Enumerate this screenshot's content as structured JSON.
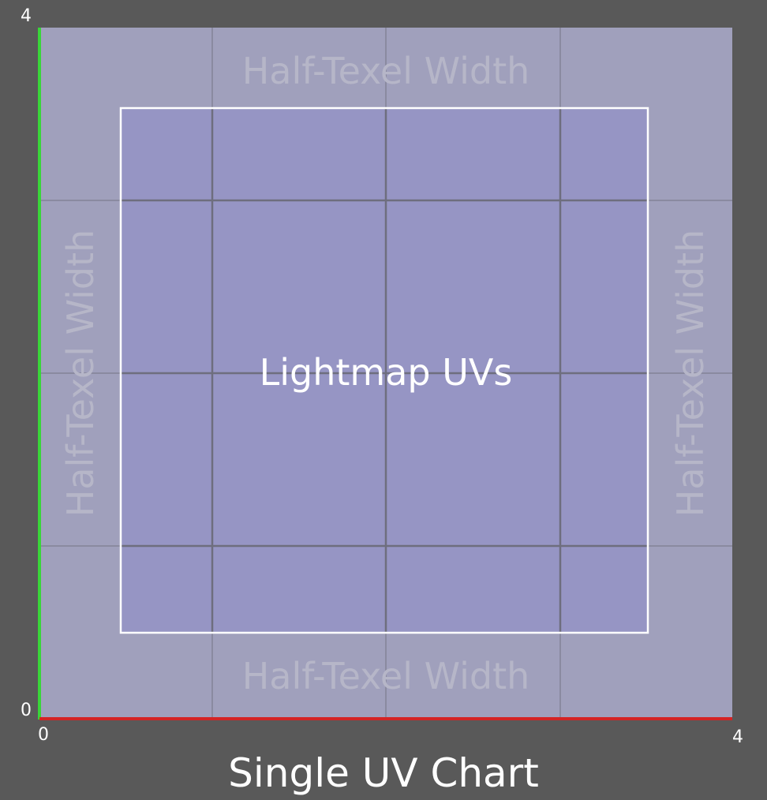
{
  "diagram": {
    "caption": "Single UV Chart",
    "center_label": "Lightmap UVs",
    "margin_label_top": "Half-Texel Width",
    "margin_label_bottom": "Half-Texel Width",
    "margin_label_left": "Half-Texel Width",
    "margin_label_right": "Half-Texel Width",
    "axis": {
      "x_min": "0",
      "x_max": "4",
      "y_min": "0",
      "y_max": "4"
    },
    "grid": {
      "divisions": 4
    },
    "colors": {
      "background": "#595959",
      "chart_fill": "#a0a0bc",
      "uv_fill": "#9695c4",
      "uv_border": "#ffffff",
      "grid_line": "#6e6e7e",
      "x_axis": "#d42424",
      "y_axis": "#39d639",
      "margin_text": "#b6b6c8"
    }
  }
}
